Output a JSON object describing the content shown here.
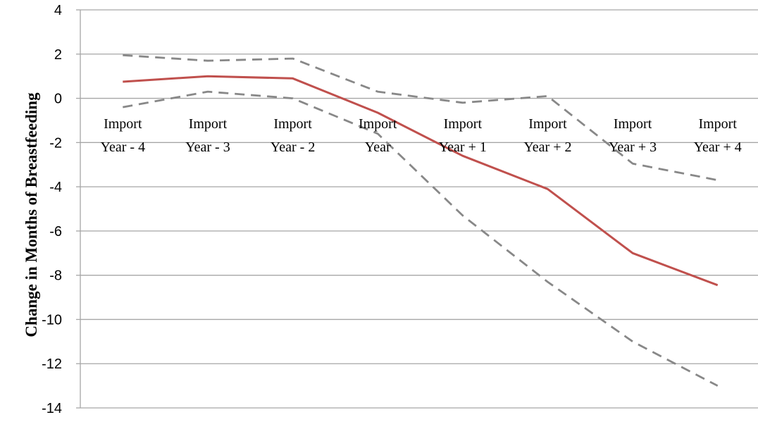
{
  "chart_data": {
    "type": "line",
    "ylabel": "Change in Months of  Breastfeeding",
    "xlabel": "",
    "ylim": [
      -14,
      4
    ],
    "yticks": [
      4,
      2,
      0,
      -2,
      -4,
      -6,
      -8,
      -10,
      -12,
      -14
    ],
    "grid": true,
    "legend": "none",
    "categories": [
      [
        "Import",
        "Year - 4"
      ],
      [
        "Import",
        "Year - 3"
      ],
      [
        "Import",
        "Year - 2"
      ],
      [
        "Import",
        "Year"
      ],
      [
        "Import",
        "Year + 1"
      ],
      [
        "Import",
        "Year + 2"
      ],
      [
        "Import",
        "Year + 3"
      ],
      [
        "Import",
        "Year + 4"
      ]
    ],
    "series": [
      {
        "style": "solid",
        "color": "#c0504d",
        "values": [
          0.75,
          1.0,
          0.9,
          -0.65,
          -2.6,
          -4.1,
          -7.0,
          -8.45
        ]
      },
      {
        "style": "dashed",
        "color": "#888888",
        "values": [
          1.95,
          1.7,
          1.8,
          0.3,
          -0.2,
          0.1,
          -2.95,
          -3.7
        ]
      },
      {
        "style": "dashed",
        "color": "#888888",
        "values": [
          -0.4,
          0.3,
          0.0,
          -1.6,
          -5.3,
          -8.3,
          -11.0,
          -13.0
        ]
      }
    ]
  }
}
